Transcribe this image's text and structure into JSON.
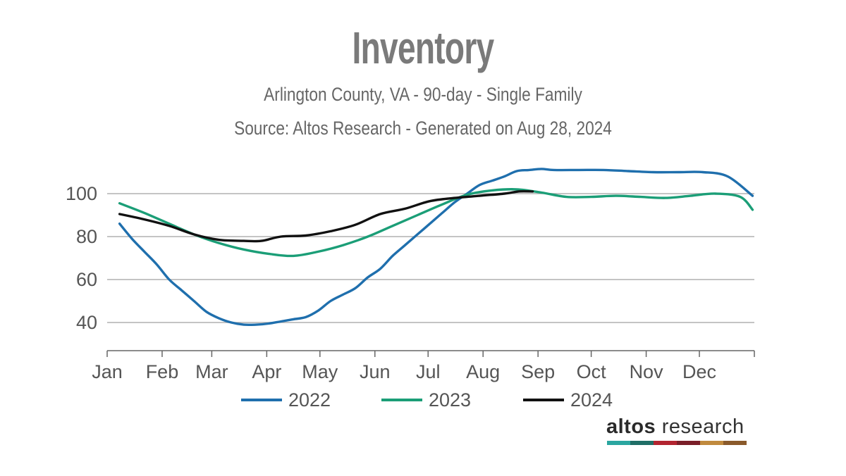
{
  "header": {
    "title": "Inventory",
    "subtitle": "Arlington County, VA - 90-day - Single Family",
    "source": "Source: Altos Research - Generated on Aug 28, 2024"
  },
  "brand": {
    "name_bold": "altos",
    "name_regular": " research",
    "stripe_colors": [
      "#2aa6a0",
      "#1f6e66",
      "#b22430",
      "#7a1e28",
      "#c08a3e",
      "#8a5a2b"
    ]
  },
  "chart_data": {
    "type": "line",
    "title": "Inventory",
    "xlabel": "",
    "ylabel": "",
    "x_ticks": [
      "Jan",
      "Feb",
      "Mar",
      "Apr",
      "May",
      "Jun",
      "Jul",
      "Aug",
      "Sep",
      "Oct",
      "Nov",
      "Dec"
    ],
    "y_ticks": [
      40,
      60,
      80,
      100
    ],
    "ylim": [
      27,
      114
    ],
    "grid": "horizontal",
    "legend_position": "bottom",
    "series": [
      {
        "name": "2022",
        "color": "#1f6fad",
        "x": [
          "2022-01-08",
          "2022-01-15",
          "2022-01-22",
          "2022-01-29",
          "2022-02-05",
          "2022-02-12",
          "2022-02-19",
          "2022-02-26",
          "2022-03-05",
          "2022-03-12",
          "2022-03-19",
          "2022-03-26",
          "2022-04-02",
          "2022-04-09",
          "2022-04-16",
          "2022-04-23",
          "2022-04-30",
          "2022-05-07",
          "2022-05-14",
          "2022-05-21",
          "2022-05-28",
          "2022-06-04",
          "2022-06-11",
          "2022-06-18",
          "2022-06-25",
          "2022-07-02",
          "2022-07-09",
          "2022-07-16",
          "2022-07-23",
          "2022-07-30",
          "2022-08-06",
          "2022-08-13",
          "2022-08-20",
          "2022-08-27",
          "2022-09-03",
          "2022-09-10",
          "2022-09-24",
          "2022-10-08",
          "2022-10-22",
          "2022-11-05",
          "2022-11-19",
          "2022-12-03",
          "2022-12-17",
          "2022-12-31"
        ],
        "values": [
          86,
          79,
          73,
          67,
          60,
          55,
          50,
          45,
          42,
          40,
          39,
          39,
          39.5,
          40.5,
          41.5,
          42.5,
          45.5,
          50,
          53,
          56,
          61,
          65,
          71,
          76,
          81,
          86,
          91,
          96,
          100,
          104,
          106,
          108,
          110.5,
          111,
          111.5,
          111,
          111,
          111,
          110.5,
          110,
          110,
          110,
          108,
          99
        ]
      },
      {
        "name": "2023",
        "color": "#1b9e77",
        "x": [
          "2023-01-08",
          "2023-01-22",
          "2023-02-05",
          "2023-02-19",
          "2023-03-05",
          "2023-03-19",
          "2023-04-02",
          "2023-04-16",
          "2023-04-30",
          "2023-05-14",
          "2023-05-28",
          "2023-06-11",
          "2023-06-25",
          "2023-07-09",
          "2023-07-23",
          "2023-08-06",
          "2023-08-20",
          "2023-09-03",
          "2023-09-17",
          "2023-10-01",
          "2023-10-15",
          "2023-10-29",
          "2023-11-12",
          "2023-11-26",
          "2023-12-10",
          "2023-12-24",
          "2023-12-31"
        ],
        "values": [
          95.5,
          91,
          86,
          81,
          77,
          74,
          72,
          71,
          73,
          76,
          80,
          85,
          90,
          95,
          99.5,
          101.5,
          102,
          100.5,
          98.5,
          98.5,
          99,
          98.5,
          98,
          99,
          100,
          98.5,
          92.5
        ]
      },
      {
        "name": "2024",
        "color": "#111111",
        "x": [
          "2024-01-08",
          "2024-01-22",
          "2024-02-05",
          "2024-02-19",
          "2024-03-04",
          "2024-03-18",
          "2024-03-28",
          "2024-04-08",
          "2024-04-22",
          "2024-05-06",
          "2024-05-20",
          "2024-06-03",
          "2024-06-17",
          "2024-07-01",
          "2024-07-15",
          "2024-07-29",
          "2024-08-12",
          "2024-08-20",
          "2024-08-28"
        ],
        "values": [
          90.5,
          88,
          85,
          81,
          78.5,
          78,
          78,
          80,
          80.5,
          82.5,
          85.5,
          90.5,
          93,
          96.5,
          98,
          99,
          100,
          101,
          101
        ]
      }
    ]
  }
}
